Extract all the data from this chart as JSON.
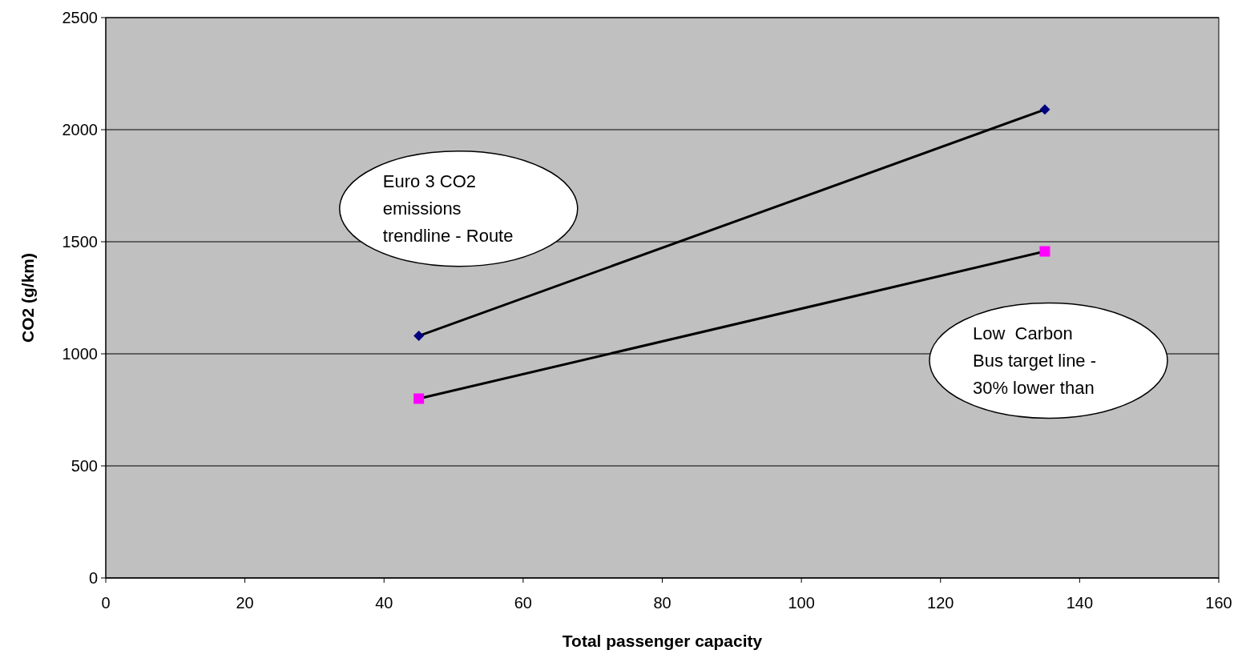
{
  "chart_data": {
    "type": "line",
    "xlabel": "Total passenger capacity",
    "ylabel": "CO2 (g/km)",
    "xlim": [
      0,
      160
    ],
    "xticks": [
      0,
      20,
      40,
      60,
      80,
      100,
      120,
      140,
      160
    ],
    "ylim": [
      0,
      2500
    ],
    "yticks": [
      0,
      500,
      1000,
      1500,
      2000,
      2500
    ],
    "grid": "y",
    "x": [
      45,
      135
    ],
    "series": [
      {
        "color": "#000080",
        "marker": "diamond",
        "values": [
          1080,
          2090
        ]
      },
      {
        "color": "#ff00ff",
        "marker": "square",
        "values": [
          800,
          1457
        ]
      }
    ],
    "annotations": [
      "Euro 3 CO2\nemissions\ntrendline - Route",
      "Low  Carbon\nBus target line -\n30% lower than"
    ]
  }
}
